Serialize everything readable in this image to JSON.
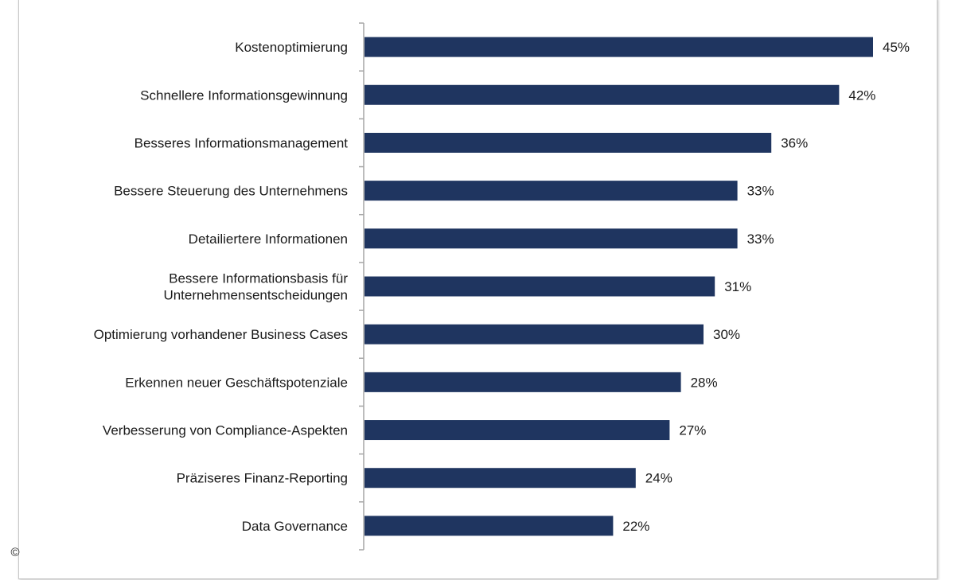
{
  "chart_data": {
    "type": "bar",
    "orientation": "horizontal",
    "title": "",
    "xlabel": "",
    "ylabel": "",
    "categories": [
      "Kostenoptimierung",
      "Schnellere Informationsgewinnung",
      "Besseres Informationsmanagement",
      "Bessere Steuerung des Unternehmens",
      "Detailiertere Informationen",
      "Bessere Informationsbasis für Unternehmensentscheidungen",
      "Optimierung vorhandener Business Cases",
      "Erkennen neuer Geschäftspotenziale",
      "Verbesserung von Compliance-Aspekten",
      "Präziseres Finanz-Reporting",
      "Data Governance"
    ],
    "category_lines": [
      [
        "Kostenoptimierung"
      ],
      [
        "Schnellere Informationsgewinnung"
      ],
      [
        "Besseres Informationsmanagement"
      ],
      [
        "Bessere Steuerung des Unternehmens"
      ],
      [
        "Detailiertere Informationen"
      ],
      [
        "Bessere Informationsbasis für",
        "Unternehmensentscheidungen"
      ],
      [
        "Optimierung vorhandener Business Cases"
      ],
      [
        "Erkennen neuer Geschäftspotenziale"
      ],
      [
        "Verbesserung von Compliance-Aspekten"
      ],
      [
        "Präziseres Finanz-Reporting"
      ],
      [
        "Data Governance"
      ]
    ],
    "values": [
      45,
      42,
      36,
      33,
      33,
      31,
      30,
      28,
      27,
      24,
      22
    ],
    "value_labels": [
      "45%",
      "42%",
      "36%",
      "33%",
      "33%",
      "31%",
      "30%",
      "28%",
      "27%",
      "24%",
      "22%"
    ],
    "unit": "%",
    "xlim": [
      0,
      50
    ],
    "grid": false,
    "legend": "none",
    "bar_color": "#1f3560"
  },
  "copyright_symbol": "©"
}
